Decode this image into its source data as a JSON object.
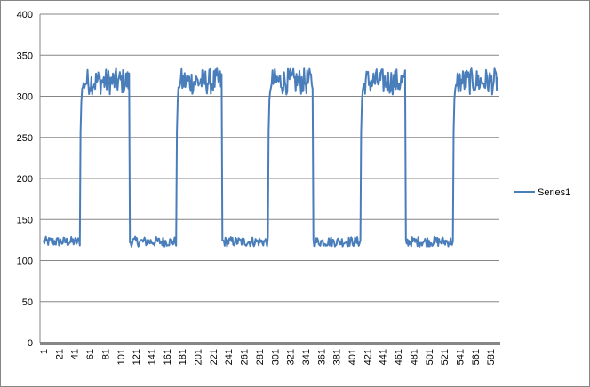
{
  "chart_data": {
    "type": "line",
    "title": "",
    "xlabel": "",
    "ylabel": "",
    "ylim": [
      0,
      400
    ],
    "y_ticks": [
      0,
      50,
      100,
      150,
      200,
      250,
      300,
      350,
      400
    ],
    "x_range": [
      1,
      590
    ],
    "x_ticks": [
      "1",
      "21",
      "41",
      "61",
      "81",
      "101",
      "121",
      "141",
      "161",
      "181",
      "201",
      "221",
      "241",
      "261",
      "281",
      "301",
      "321",
      "341",
      "361",
      "381",
      "401",
      "421",
      "441",
      "461",
      "481",
      "501",
      "521",
      "541",
      "561",
      "581"
    ],
    "grid": "horizontal",
    "legend_position": "right",
    "color": "#4A7EBB",
    "series": [
      {
        "name": "Series1",
        "low_level": 123,
        "high_level": 318,
        "segments": [
          {
            "start": 1,
            "end": 48,
            "level": "low"
          },
          {
            "start": 49,
            "end": 112,
            "level": "high"
          },
          {
            "start": 113,
            "end": 173,
            "level": "low"
          },
          {
            "start": 174,
            "end": 232,
            "level": "high"
          },
          {
            "start": 233,
            "end": 292,
            "level": "low"
          },
          {
            "start": 293,
            "end": 350,
            "level": "high"
          },
          {
            "start": 351,
            "end": 412,
            "level": "low"
          },
          {
            "start": 413,
            "end": 470,
            "level": "high"
          },
          {
            "start": 471,
            "end": 532,
            "level": "low"
          },
          {
            "start": 533,
            "end": 590,
            "level": "high"
          }
        ]
      }
    ]
  }
}
